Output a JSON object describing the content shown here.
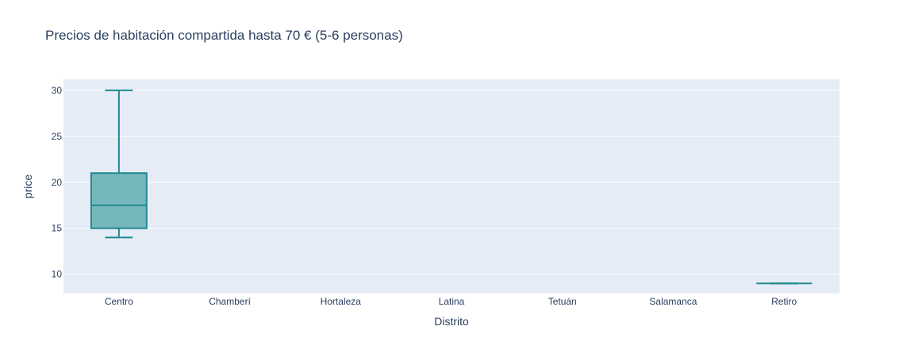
{
  "chart_data": {
    "type": "box",
    "title": "Precios de habitación compartida hasta 70 € (5-6 personas)",
    "xlabel": "Distrito",
    "ylabel": "price",
    "categories": [
      "Centro",
      "Chamberí",
      "Hortaleza",
      "Latina",
      "Tetuán",
      "Salamanca",
      "Retiro"
    ],
    "ylim": [
      7.9,
      31.2
    ],
    "yticks": [
      10,
      15,
      20,
      25,
      30
    ],
    "grid": true,
    "boxes": [
      {
        "category": "Centro",
        "min": 14,
        "q1": 15,
        "median": 17.5,
        "q3": 21,
        "max": 30
      },
      {
        "category": "Retiro",
        "min": 9,
        "q1": 9,
        "median": 9,
        "q3": 9,
        "max": 9
      }
    ],
    "colors": {
      "box_line": "#1f8a8f",
      "box_fill": "#76b7bb",
      "plot_bg": "#e5ecf6",
      "grid": "#ffffff",
      "text": "#2a3f5f"
    }
  }
}
